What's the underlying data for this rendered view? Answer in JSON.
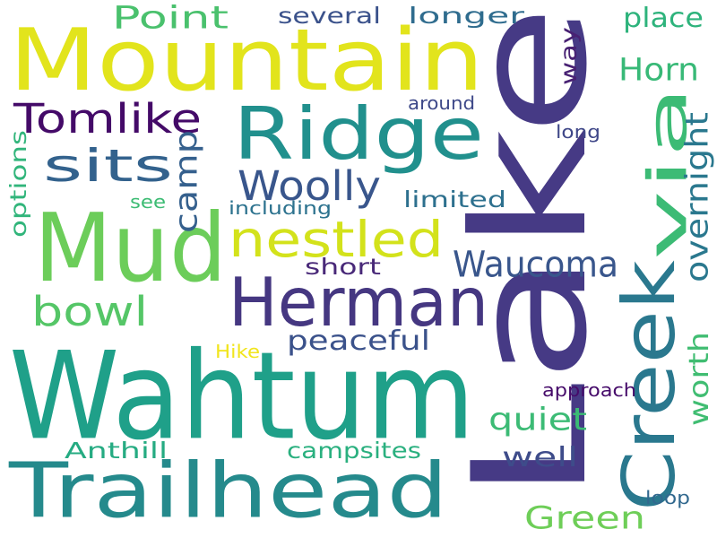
{
  "words": [
    {
      "text": "Lake",
      "color": "#463a85",
      "vertical": true
    },
    {
      "text": "Wahtum",
      "color": "#1fa089"
    },
    {
      "text": "Mountain",
      "color": "#e2e41c"
    },
    {
      "text": "Mud",
      "color": "#6ccd5a"
    },
    {
      "text": "Trailhead",
      "color": "#258a8c"
    },
    {
      "text": "Ridge",
      "color": "#21908d"
    },
    {
      "text": "Creek",
      "color": "#2a788e",
      "vertical": true
    },
    {
      "text": "Herman",
      "color": "#453781"
    },
    {
      "text": "via",
      "color": "#3cbb75",
      "vertical": true
    },
    {
      "text": "nestled",
      "color": "#d3e21b"
    },
    {
      "text": "sits",
      "color": "#33628d"
    },
    {
      "text": "Tomlike",
      "color": "#440a68"
    },
    {
      "text": "Woolly",
      "color": "#39568c"
    },
    {
      "text": "Waucoma",
      "color": "#39568c"
    },
    {
      "text": "bowl",
      "color": "#55c667"
    },
    {
      "text": "Point",
      "color": "#4ac16d"
    },
    {
      "text": "Horn",
      "color": "#38b977"
    },
    {
      "text": "Green",
      "color": "#6ece58"
    },
    {
      "text": "overnight",
      "color": "#2a788e",
      "vertical": true
    },
    {
      "text": "peaceful",
      "color": "#3b528b"
    },
    {
      "text": "quiet",
      "color": "#3cbb75"
    },
    {
      "text": "well",
      "color": "#3e4c8a"
    },
    {
      "text": "place",
      "color": "#2eb37c"
    },
    {
      "text": "camp",
      "color": "#35608d",
      "vertical": true
    },
    {
      "text": "worth",
      "color": "#40bd72",
      "vertical": true
    },
    {
      "text": "Anthill",
      "color": "#25ab82"
    },
    {
      "text": "campsites",
      "color": "#2ab07f"
    },
    {
      "text": "limited",
      "color": "#2d708e"
    },
    {
      "text": "short",
      "color": "#482878"
    },
    {
      "text": "longer",
      "color": "#2f6c8e"
    },
    {
      "text": "several",
      "color": "#3b528b"
    },
    {
      "text": "way",
      "color": "#482173",
      "vertical": true
    },
    {
      "text": "options",
      "color": "#31b57b",
      "vertical": true
    },
    {
      "text": "around",
      "color": "#3e4989"
    },
    {
      "text": "long",
      "color": "#3f4788"
    },
    {
      "text": "including",
      "color": "#2c728e"
    },
    {
      "text": "see",
      "color": "#3dbc74"
    },
    {
      "text": "approach",
      "color": "#460b6a"
    },
    {
      "text": "loop",
      "color": "#31688e"
    },
    {
      "text": "Hike",
      "color": "#f1e51d"
    }
  ]
}
